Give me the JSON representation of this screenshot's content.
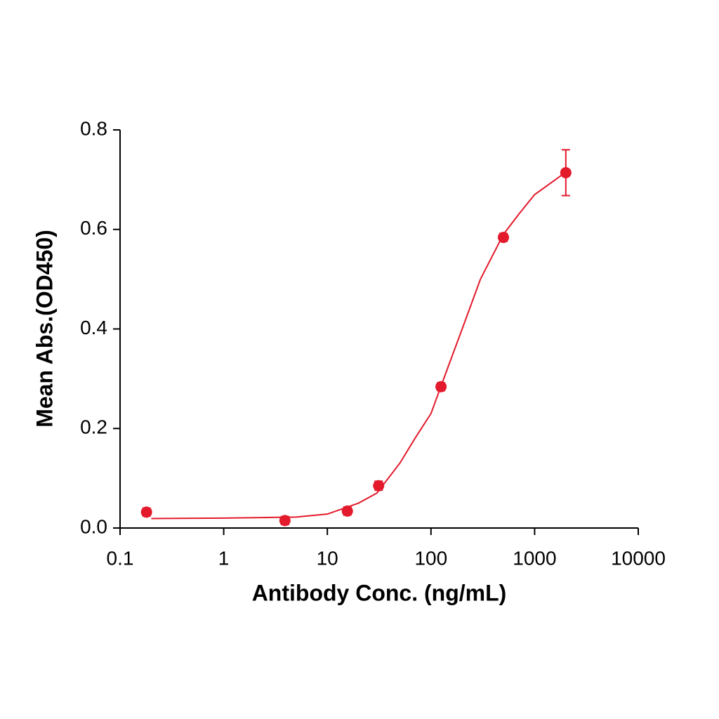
{
  "chart_data": {
    "type": "scatter",
    "x_label": "Antibody Conc. (ng/mL)",
    "y_label": "Mean Abs.(OD450)",
    "x_scale": "log",
    "x": [
      0.18,
      3.9,
      15.6,
      31.25,
      125,
      500,
      2000
    ],
    "values": [
      0.032,
      0.015,
      0.034,
      0.085,
      0.284,
      0.584,
      0.714
    ],
    "errors": [
      0.008,
      0.008,
      0.008,
      0.009,
      0.008,
      0.008,
      0.046
    ],
    "fit_x": [
      0.2,
      1,
      5,
      10,
      20,
      30,
      50,
      70,
      100,
      150,
      200,
      300,
      500,
      700,
      1000,
      2000
    ],
    "fit_values": [
      0.019,
      0.02,
      0.022,
      0.028,
      0.05,
      0.07,
      0.13,
      0.18,
      0.23,
      0.33,
      0.4,
      0.5,
      0.59,
      0.63,
      0.67,
      0.715
    ],
    "color": "#e31a2b",
    "xlim": [
      0.1,
      10000
    ],
    "xticks": [
      0.1,
      1,
      10,
      100,
      1000,
      10000
    ],
    "ylim": [
      0,
      0.8
    ],
    "yticks": [
      {
        "value": 0,
        "label": "0.0"
      },
      0.2,
      0.4,
      0.6,
      0.8
    ]
  }
}
